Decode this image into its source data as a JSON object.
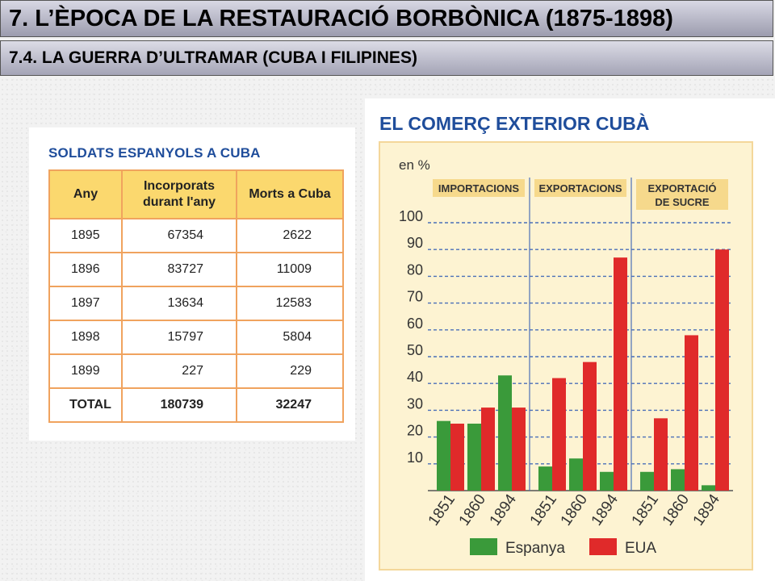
{
  "header": {
    "title": "7. L’ÈPOCA DE LA RESTAURACIÓ BORBÒNICA (1875-1898)",
    "subtitle": "7.4. LA GUERRA D’ULTRAMAR (CUBA I FILIPINES)"
  },
  "soldiers_table": {
    "title": "SOLDATS ESPANYOLS A CUBA",
    "columns": [
      "Any",
      "Incorporats durant l'any",
      "Morts a Cuba"
    ],
    "rows": [
      [
        "1895",
        "67354",
        "2622"
      ],
      [
        "1896",
        "83727",
        "11009"
      ],
      [
        "1897",
        "13634",
        "12583"
      ],
      [
        "1898",
        "15797",
        "5804"
      ],
      [
        "1899",
        "227",
        "229"
      ]
    ],
    "total": [
      "TOTAL",
      "180739",
      "32247"
    ]
  },
  "chart_data": {
    "type": "bar",
    "title": "EL COMERÇ EXTERIOR CUBÀ",
    "ylabel": "en %",
    "ylim": [
      0,
      100
    ],
    "yticks": [
      10,
      20,
      30,
      40,
      50,
      60,
      70,
      80,
      90,
      100
    ],
    "grid": true,
    "groups": [
      "IMPORTACIONS",
      "EXPORTACIONS",
      "EXPORTACIÓ DE SUCRE"
    ],
    "categories": [
      "1851",
      "1860",
      "1894"
    ],
    "series": [
      {
        "name": "Espanya",
        "color": "#3a9a3a",
        "values": [
          [
            26,
            25,
            43
          ],
          [
            9,
            12,
            7
          ],
          [
            7,
            8,
            2
          ]
        ]
      },
      {
        "name": "EUA",
        "color": "#e02a2a",
        "values": [
          [
            25,
            31,
            31
          ],
          [
            42,
            48,
            87
          ],
          [
            27,
            58,
            90
          ]
        ]
      }
    ],
    "legend": "bottom"
  }
}
